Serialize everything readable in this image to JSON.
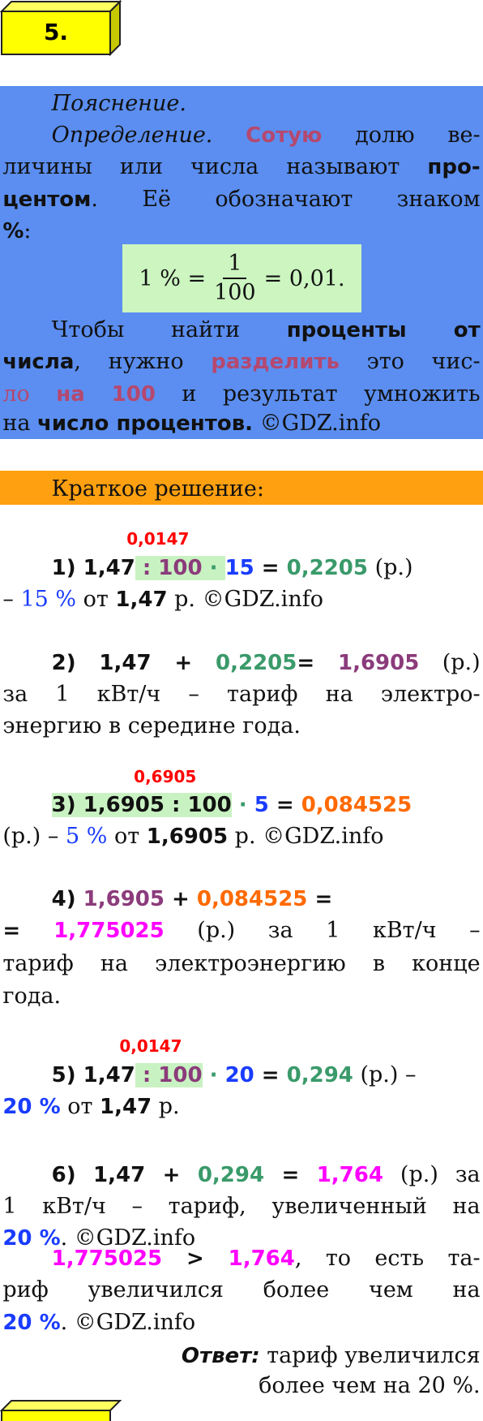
{
  "header": {
    "title": "5."
  },
  "lines": [
    {
      "segments": [
        {
          "text": "Пояснение.",
          "italic": true
        }
      ]
    },
    {
      "segments": [
        {
          "text": "Определение.",
          "italic": true
        },
        {
          "text": " "
        },
        {
          "text": "Сотую",
          "bold": true,
          "color": "#b5486f"
        },
        {
          "text": " долю ве-"
        }
      ]
    },
    {
      "segments": [
        {
          "text": "личины или числа называют "
        },
        {
          "text": "про-",
          "bold": true
        }
      ]
    },
    {
      "segments": [
        {
          "text": "центом",
          "bold": true
        },
        {
          "text": ". Её обозначают знаком"
        }
      ]
    },
    {
      "segments": [
        {
          "text": "%",
          "bold": true
        },
        {
          "text": ":"
        }
      ]
    },
    {
      "segments": [
        {
          "text": "Чтобы найти "
        },
        {
          "text": "проценты от",
          "bold": true
        }
      ]
    },
    {
      "segments": [
        {
          "text": "числа",
          "bold": true
        },
        {
          "text": ", нужно "
        },
        {
          "text": "разделить",
          "bold": true,
          "color": "#b5486f"
        },
        {
          "text": " это чис-"
        }
      ]
    },
    {
      "segments": [
        {
          "text": "ло",
          "color": "#b5486f"
        },
        {
          "text": " "
        },
        {
          "text": "на 100",
          "bold": true,
          "color": "#b5486f"
        },
        {
          "text": " и результат умножить"
        }
      ]
    },
    {
      "segments": [
        {
          "text": "на "
        },
        {
          "text": "число процентов.",
          "bold": true
        },
        {
          "text": " ©GDZ.info"
        }
      ]
    },
    {
      "segments": [
        {
          "text": "Краткое решение:"
        }
      ]
    },
    {
      "segments": [
        {
          "text": "1) 1,47",
          "bold": true
        },
        {
          "text": " : 100",
          "bold": true,
          "color": "#8b3b7b",
          "bg": "#c9f2c2"
        },
        {
          "text": " · ",
          "bold": true,
          "color": "#3a9a6a",
          "bg": "#c9f2c2"
        },
        {
          "text": "15",
          "bold": true,
          "color": "#1a3cff"
        },
        {
          "text": " = ",
          "bold": true
        },
        {
          "text": "0,2205",
          "bold": true,
          "color": "#3a9a6a"
        },
        {
          "text": " (р.)"
        }
      ]
    },
    {
      "segments": [
        {
          "text": "– "
        },
        {
          "text": "15 %",
          "color": "#1a3cff"
        },
        {
          "text": " от "
        },
        {
          "text": "1,47",
          "bold": true
        },
        {
          "text": " р. ©GDZ.info"
        }
      ]
    },
    {
      "segments": [
        {
          "text": "2) 1,47 + ",
          "bold": true
        },
        {
          "text": "0,2205",
          "bold": true,
          "color": "#3a9a6a"
        },
        {
          "text": "= ",
          "bold": true
        },
        {
          "text": "1,6905",
          "bold": true,
          "color": "#8b3b7b"
        },
        {
          "text": " (р.)"
        }
      ]
    },
    {
      "segments": [
        {
          "text": "за 1 кВт/ч – тариф на электро-"
        }
      ]
    },
    {
      "segments": [
        {
          "text": "энергию в середине года."
        }
      ]
    },
    {
      "segments": [
        {
          "text": "3) 1,6905 : 100",
          "bold": true,
          "bg": "#c9f2c2"
        },
        {
          "text": " · ",
          "bold": true,
          "color": "#3a9a6a"
        },
        {
          "text": "5",
          "bold": true,
          "color": "#1a3cff"
        },
        {
          "text": " = ",
          "bold": true
        },
        {
          "text": "0,084525",
          "bold": true,
          "color": "#ff6a00"
        }
      ]
    },
    {
      "segments": [
        {
          "text": "(р.) – "
        },
        {
          "text": "5 %",
          "color": "#1a3cff"
        },
        {
          "text": " от "
        },
        {
          "text": "1,6905",
          "bold": true
        },
        {
          "text": " р. ©GDZ.info"
        }
      ]
    },
    {
      "segments": [
        {
          "text": "4) ",
          "bold": true
        },
        {
          "text": "1,6905",
          "bold": true,
          "color": "#8b3b7b"
        },
        {
          "text": " + ",
          "bold": true
        },
        {
          "text": "0,084525",
          "bold": true,
          "color": "#ff6a00"
        },
        {
          "text": " =",
          "bold": true
        }
      ]
    },
    {
      "segments": [
        {
          "text": "= ",
          "bold": true
        },
        {
          "text": "1,775025",
          "bold": true,
          "color": "#ff00ff"
        },
        {
          "text": " (р.) за 1 кВт/ч –"
        }
      ]
    },
    {
      "segments": [
        {
          "text": "тариф на электроэнергию в конце"
        }
      ]
    },
    {
      "segments": [
        {
          "text": "года."
        }
      ]
    },
    {
      "segments": [
        {
          "text": "5) 1,47",
          "bold": true
        },
        {
          "text": " : 100",
          "bold": true,
          "color": "#8b3b7b",
          "bg": "#c9f2c2"
        },
        {
          "text": " · ",
          "bold": true,
          "color": "#3a9a6a"
        },
        {
          "text": "20",
          "bold": true,
          "color": "#1a3cff"
        },
        {
          "text": " = ",
          "bold": true
        },
        {
          "text": "0,294",
          "bold": true,
          "color": "#3a9a6a"
        },
        {
          "text": " (р.) –"
        }
      ]
    },
    {
      "segments": [
        {
          "text": "20 %",
          "bold": true,
          "color": "#1a3cff"
        },
        {
          "text": " от "
        },
        {
          "text": "1,47",
          "bold": true
        },
        {
          "text": " р."
        }
      ]
    },
    {
      "segments": [
        {
          "text": "6) 1,47 + ",
          "bold": true
        },
        {
          "text": "0,294",
          "bold": true,
          "color": "#3a9a6a"
        },
        {
          "text": " = ",
          "bold": true
        },
        {
          "text": "1,764",
          "bold": true,
          "color": "#ff00ff"
        },
        {
          "text": " (р.) за"
        }
      ]
    },
    {
      "segments": [
        {
          "text": "1 кВт/ч – тариф, увеличенный на"
        }
      ]
    },
    {
      "segments": [
        {
          "text": "20 %",
          "bold": true,
          "color": "#1a3cff"
        },
        {
          "text": ". ©GDZ.info"
        }
      ]
    },
    {
      "segments": [
        {
          "text": "1,775025",
          "bold": true,
          "color": "#ff00ff"
        },
        {
          "text": " > ",
          "bold": true
        },
        {
          "text": "1,764",
          "bold": true,
          "color": "#ff00ff"
        },
        {
          "text": ", то есть та-"
        }
      ]
    },
    {
      "segments": [
        {
          "text": "риф увеличился более чем на"
        }
      ]
    },
    {
      "segments": [
        {
          "text": "20 %",
          "bold": true,
          "color": "#1a3cff"
        },
        {
          "text": ". ©GDZ.info"
        }
      ]
    },
    {
      "segments": [
        {
          "text": "Ответ:",
          "bold": true,
          "italic": true
        },
        {
          "text": " тариф увеличился"
        }
      ]
    },
    {
      "segments": [
        {
          "text": "более чем на 20 %."
        }
      ]
    }
  ],
  "formula": {
    "left": "1 % =",
    "numerator": "1",
    "denominator": "100",
    "right": "= 0,01."
  },
  "annotations": [
    {
      "text": "0,0147",
      "color": "#ff0000"
    },
    {
      "text": "0,6905",
      "color": "#ff0000"
    },
    {
      "text": "0,0147",
      "color": "#ff0000"
    }
  ]
}
